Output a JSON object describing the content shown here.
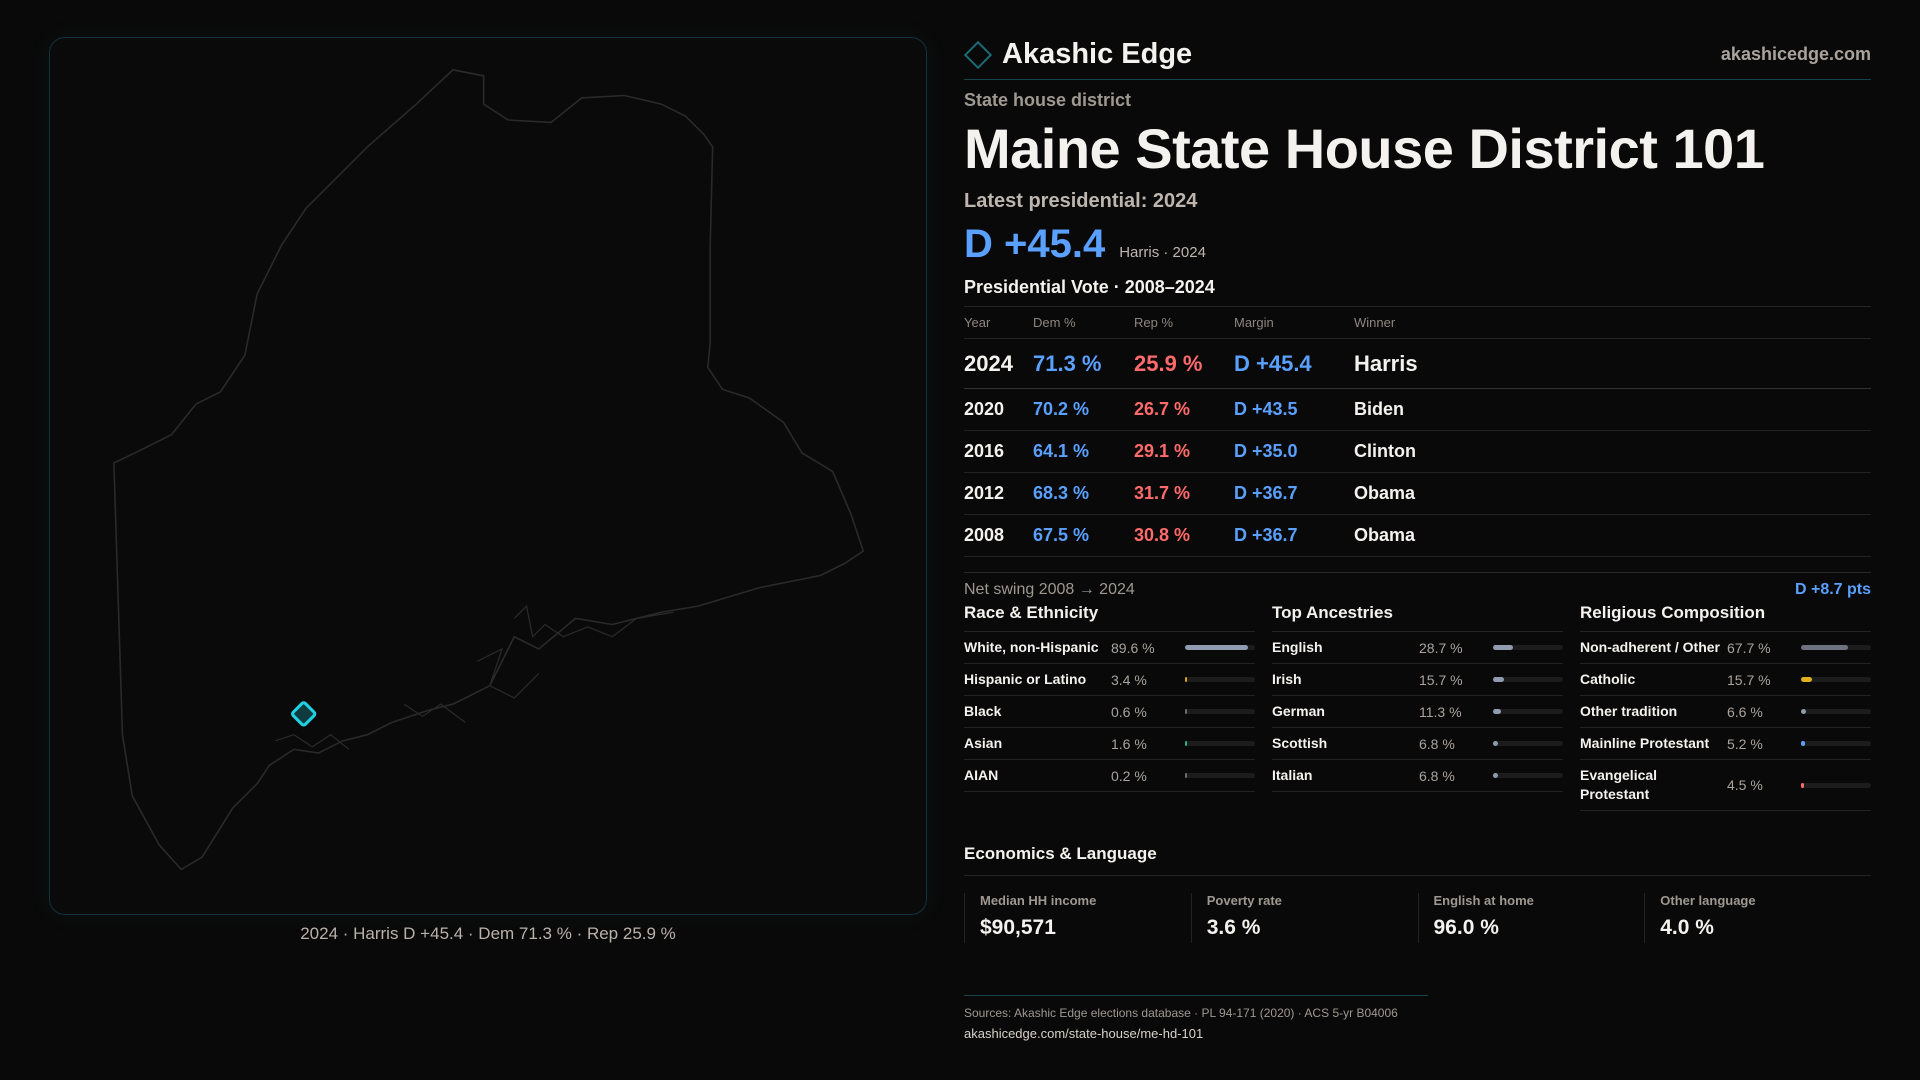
{
  "brand": {
    "name": "Akashic Edge",
    "site": "akashicedge.com",
    "colors": {
      "accent": "#1a6b73",
      "dem": "#5aa0ff",
      "rep": "#ff6a6a"
    }
  },
  "map": {
    "caption": "2024 · Harris D +45.4 · Dem 71.3 % · Rep 25.9 %",
    "marker_icon": "district-marker-icon"
  },
  "district": {
    "kicker": "State house district",
    "title": "Maine State House District 101",
    "latest_label": "Latest presidential: 2024",
    "margin": "D +45.4",
    "margin_sub": "Harris · 2024"
  },
  "votes": {
    "title": "Presidential Vote · 2008–2024",
    "headers": [
      "Year",
      "Dem %",
      "Rep %",
      "Margin",
      "Winner"
    ],
    "rows": [
      {
        "year": "2024",
        "dem": "71.3 %",
        "rep": "25.9 %",
        "margin": "D +45.4",
        "winner": "Harris"
      },
      {
        "year": "2020",
        "dem": "70.2 %",
        "rep": "26.7 %",
        "margin": "D +43.5",
        "winner": "Biden"
      },
      {
        "year": "2016",
        "dem": "64.1 %",
        "rep": "29.1 %",
        "margin": "D +35.0",
        "winner": "Clinton"
      },
      {
        "year": "2012",
        "dem": "68.3 %",
        "rep": "31.7 %",
        "margin": "D +36.7",
        "winner": "Obama"
      },
      {
        "year": "2008",
        "dem": "67.5 %",
        "rep": "30.8 %",
        "margin": "D +36.7",
        "winner": "Obama"
      }
    ],
    "swing_label": "Net swing 2008 → 2024",
    "swing_value": "D +8.7 pts"
  },
  "sections": [
    {
      "title": "Race & Ethnicity",
      "items": [
        {
          "label": "White, non-Hispanic",
          "value": "89.6 %",
          "pct": 89.6,
          "color": "#8e9bb0"
        },
        {
          "label": "Hispanic or Latino",
          "value": "3.4 %",
          "pct": 3.4,
          "color": "#d9a020"
        },
        {
          "label": "Black",
          "value": "0.6 %",
          "pct": 0.6,
          "color": "#6a6a6a"
        },
        {
          "label": "Asian",
          "value": "1.6 %",
          "pct": 1.6,
          "color": "#2fb08a"
        },
        {
          "label": "AIAN",
          "value": "0.2 %",
          "pct": 0.2,
          "color": "#6a6a6a"
        }
      ]
    },
    {
      "title": "Top Ancestries",
      "items": [
        {
          "label": "English",
          "value": "28.7 %",
          "pct": 28.7,
          "color": "#8e9bb0"
        },
        {
          "label": "Irish",
          "value": "15.7 %",
          "pct": 15.7,
          "color": "#8e9bb0"
        },
        {
          "label": "German",
          "value": "11.3 %",
          "pct": 11.3,
          "color": "#8e9bb0"
        },
        {
          "label": "Scottish",
          "value": "6.8 %",
          "pct": 6.8,
          "color": "#8e9bb0"
        },
        {
          "label": "Italian",
          "value": "6.8 %",
          "pct": 6.8,
          "color": "#8e9bb0"
        }
      ]
    },
    {
      "title": "Religious Composition",
      "items": [
        {
          "label": "Non-adherent / Other",
          "value": "67.7 %",
          "pct": 67.7,
          "color": "#6e7280"
        },
        {
          "label": "Catholic",
          "value": "15.7 %",
          "pct": 15.7,
          "color": "#e0b020"
        },
        {
          "label": "Other tradition",
          "value": "6.6 %",
          "pct": 6.6,
          "color": "#8e9bb0"
        },
        {
          "label": "Mainline Protestant",
          "value": "5.2 %",
          "pct": 5.2,
          "color": "#5aa0ff"
        },
        {
          "label": "Evangelical Protestant",
          "value": "4.5 %",
          "pct": 4.5,
          "color": "#ff6a6a"
        }
      ]
    }
  ],
  "economics": {
    "title": "Economics & Language",
    "cards": [
      {
        "label": "Median HH income",
        "value": "$90,571"
      },
      {
        "label": "Poverty rate",
        "value": "3.6 %"
      },
      {
        "label": "English at home",
        "value": "96.0 %"
      },
      {
        "label": "Other language",
        "value": "4.0 %"
      }
    ]
  },
  "footer": {
    "sources": "Sources: Akashic Edge elections database · PL 94-171 (2020) · ACS 5-yr B04006",
    "url": "akashicedge.com/state-house/me-hd-101"
  }
}
